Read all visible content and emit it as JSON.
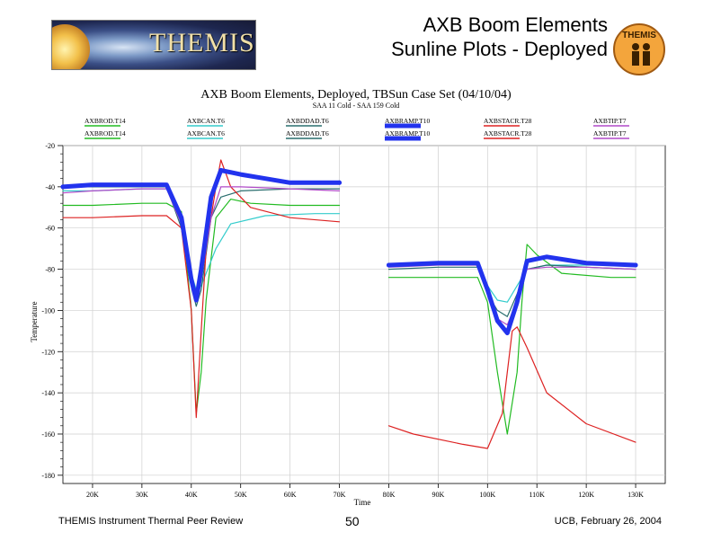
{
  "slide": {
    "title_line1": "AXB Boom Elements",
    "title_line2": "Sunline Plots - Deployed",
    "logo_text": "THEMIS",
    "badge_text": "THEMIS",
    "footer_left": "THEMIS Instrument Thermal Peer Review",
    "footer_page": "50",
    "footer_right": "UCB, February 26, 2004"
  },
  "chart_data": {
    "type": "line",
    "title": "AXB Boom Elements, Deployed, TBSun Case Set (04/10/04)",
    "subtitle": "SAA 11 Cold - SAA 159 Cold",
    "xlabel": "Time",
    "ylabel": "Temperature",
    "xlim": [
      14000,
      136000
    ],
    "ylim": [
      -184,
      -20
    ],
    "x_ticks": [
      20000,
      30000,
      40000,
      50000,
      60000,
      70000,
      80000,
      90000,
      100000,
      110000,
      120000,
      130000
    ],
    "x_tick_labels": [
      "20K",
      "30K",
      "40K",
      "50K",
      "60K",
      "70K",
      "80K",
      "90K",
      "100K",
      "110K",
      "120K",
      "130K"
    ],
    "y_ticks": [
      -20,
      -40,
      -60,
      -80,
      -100,
      -120,
      -140,
      -160,
      -180
    ],
    "y_tick_labels": [
      "-20",
      "-40",
      "-60",
      "-80",
      "-100",
      "-120",
      "-140",
      "-160",
      "-180"
    ],
    "grid": true,
    "legend_position": "top",
    "series": [
      {
        "name": "AXBROD.T14",
        "color": "#22bb22",
        "segments": [
          [
            [
              14000,
              -49
            ],
            [
              20000,
              -49
            ],
            [
              30000,
              -48
            ],
            [
              35000,
              -48
            ],
            [
              38000,
              -52
            ],
            [
              40000,
              -100
            ],
            [
              41000,
              -150
            ],
            [
              42000,
              -130
            ],
            [
              43000,
              -95
            ],
            [
              45000,
              -55
            ],
            [
              48000,
              -46
            ],
            [
              52000,
              -48
            ],
            [
              60000,
              -49
            ],
            [
              70000,
              -49
            ]
          ],
          [
            [
              80000,
              -84
            ],
            [
              90000,
              -84
            ],
            [
              98000,
              -84
            ],
            [
              100000,
              -96
            ],
            [
              102000,
              -130
            ],
            [
              104000,
              -160
            ],
            [
              106000,
              -130
            ],
            [
              107000,
              -95
            ],
            [
              108000,
              -68
            ],
            [
              110000,
              -73
            ],
            [
              115000,
              -82
            ],
            [
              125000,
              -84
            ],
            [
              130000,
              -84
            ]
          ]
        ]
      },
      {
        "name": "AXBCAN.T6",
        "color": "#33cccc",
        "segments": [
          [
            [
              14000,
              -42
            ],
            [
              20000,
              -42
            ],
            [
              30000,
              -41
            ],
            [
              35000,
              -41
            ],
            [
              38000,
              -55
            ],
            [
              40000,
              -82
            ],
            [
              41000,
              -90
            ],
            [
              42000,
              -88
            ],
            [
              45000,
              -70
            ],
            [
              48000,
              -58
            ],
            [
              55000,
              -54
            ],
            [
              65000,
              -53
            ],
            [
              70000,
              -53
            ]
          ],
          [
            [
              80000,
              -78
            ],
            [
              90000,
              -77
            ],
            [
              98000,
              -77
            ],
            [
              100000,
              -88
            ],
            [
              102000,
              -95
            ],
            [
              104000,
              -96
            ],
            [
              106000,
              -88
            ],
            [
              108000,
              -80
            ],
            [
              112000,
              -78
            ],
            [
              120000,
              -78
            ],
            [
              130000,
              -78
            ]
          ]
        ]
      },
      {
        "name": "AXBDDAD.T6",
        "color": "#2a6e6e",
        "segments": [
          [
            [
              14000,
              -40
            ],
            [
              20000,
              -40
            ],
            [
              30000,
              -40
            ],
            [
              35000,
              -40
            ],
            [
              38000,
              -60
            ],
            [
              40000,
              -88
            ],
            [
              41000,
              -98
            ],
            [
              42000,
              -90
            ],
            [
              44000,
              -55
            ],
            [
              46000,
              -45
            ],
            [
              50000,
              -42
            ],
            [
              60000,
              -41
            ],
            [
              70000,
              -41
            ]
          ],
          [
            [
              80000,
              -80
            ],
            [
              90000,
              -79
            ],
            [
              98000,
              -79
            ],
            [
              100000,
              -92
            ],
            [
              102000,
              -100
            ],
            [
              104000,
              -103
            ],
            [
              106000,
              -92
            ],
            [
              108000,
              -80
            ],
            [
              112000,
              -78
            ],
            [
              120000,
              -79
            ],
            [
              130000,
              -80
            ]
          ]
        ]
      },
      {
        "name": "AXBRAMP.T10",
        "color": "#2233ee",
        "width": 5,
        "segments": [
          [
            [
              14000,
              -40
            ],
            [
              20000,
              -39
            ],
            [
              30000,
              -39
            ],
            [
              35000,
              -39
            ],
            [
              38000,
              -55
            ],
            [
              40000,
              -85
            ],
            [
              41000,
              -95
            ],
            [
              42000,
              -80
            ],
            [
              44000,
              -45
            ],
            [
              46000,
              -32
            ],
            [
              50000,
              -34
            ],
            [
              55000,
              -36
            ],
            [
              60000,
              -38
            ],
            [
              70000,
              -38
            ]
          ],
          [
            [
              80000,
              -78
            ],
            [
              90000,
              -77
            ],
            [
              98000,
              -77
            ],
            [
              100000,
              -90
            ],
            [
              102000,
              -105
            ],
            [
              104000,
              -111
            ],
            [
              106000,
              -96
            ],
            [
              108000,
              -76
            ],
            [
              112000,
              -74
            ],
            [
              120000,
              -77
            ],
            [
              130000,
              -78
            ]
          ]
        ]
      },
      {
        "name": "AXBSTACR.T28",
        "color": "#dd2222",
        "segments": [
          [
            [
              14000,
              -55
            ],
            [
              20000,
              -55
            ],
            [
              30000,
              -54
            ],
            [
              35000,
              -54
            ],
            [
              38000,
              -60
            ],
            [
              40000,
              -100
            ],
            [
              41000,
              -152
            ],
            [
              42000,
              -110
            ],
            [
              43000,
              -70
            ],
            [
              45000,
              -40
            ],
            [
              46000,
              -27
            ],
            [
              48000,
              -40
            ],
            [
              52000,
              -50
            ],
            [
              60000,
              -55
            ],
            [
              70000,
              -57
            ]
          ],
          [
            [
              80000,
              -156
            ],
            [
              85000,
              -160
            ],
            [
              95000,
              -165
            ],
            [
              100000,
              -167
            ],
            [
              103000,
              -150
            ],
            [
              105000,
              -110
            ],
            [
              106000,
              -108
            ],
            [
              108000,
              -118
            ],
            [
              112000,
              -140
            ],
            [
              120000,
              -155
            ],
            [
              130000,
              -164
            ]
          ]
        ]
      },
      {
        "name": "AXBTIP.T7",
        "color": "#b04ac8",
        "segments": [
          [
            [
              14000,
              -43
            ],
            [
              20000,
              -42
            ],
            [
              30000,
              -41
            ],
            [
              35000,
              -41
            ],
            [
              38000,
              -58
            ],
            [
              40000,
              -86
            ],
            [
              41000,
              -96
            ],
            [
              42000,
              -85
            ],
            [
              44000,
              -55
            ],
            [
              46000,
              -40
            ],
            [
              50000,
              -40
            ],
            [
              60000,
              -41
            ],
            [
              70000,
              -42
            ]
          ],
          [
            [
              80000,
              -79
            ],
            [
              90000,
              -78
            ],
            [
              98000,
              -78
            ],
            [
              100000,
              -92
            ],
            [
              102000,
              -104
            ],
            [
              104000,
              -107
            ],
            [
              106000,
              -95
            ],
            [
              108000,
              -80
            ],
            [
              112000,
              -79
            ],
            [
              120000,
              -79
            ],
            [
              130000,
              -80
            ]
          ]
        ]
      }
    ]
  }
}
